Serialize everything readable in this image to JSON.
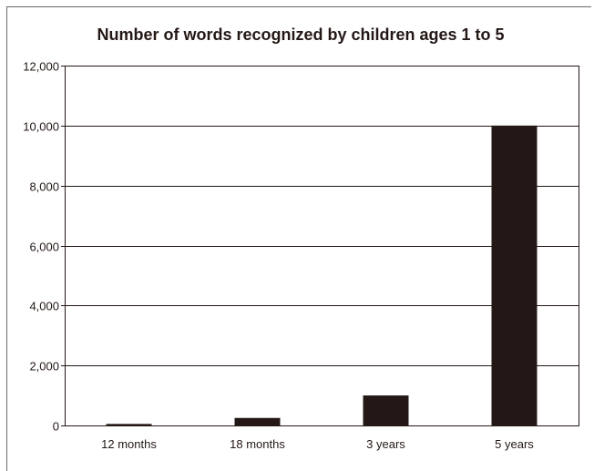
{
  "chart_data": {
    "type": "bar",
    "title": "Number of words recognized by children ages 1 to 5",
    "categories": [
      "12 months",
      "18 months",
      "3 years",
      "5 years"
    ],
    "values": [
      50,
      250,
      1000,
      10000
    ],
    "ylim": [
      0,
      12000
    ],
    "yticks": [
      0,
      2000,
      4000,
      6000,
      8000,
      10000,
      12000
    ],
    "ytick_labels": [
      "0",
      "2,000",
      "4,000",
      "6,000",
      "8,000",
      "10,000",
      "12,000"
    ],
    "xlabel": "",
    "ylabel": "",
    "grid": true,
    "bar_color": "#231815"
  }
}
